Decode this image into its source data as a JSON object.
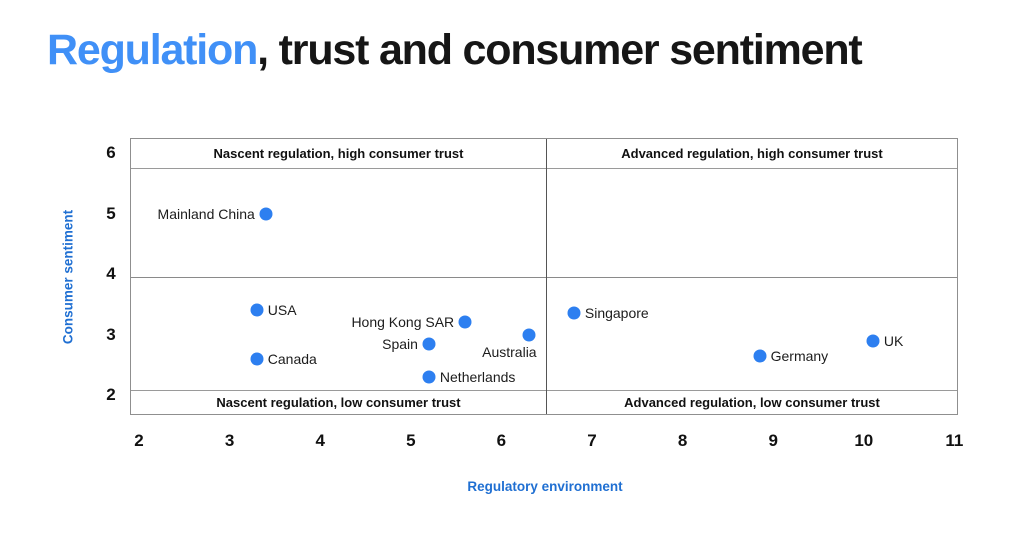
{
  "title": {
    "accent": "Regulation",
    "rest": ", trust and consumer sentiment"
  },
  "colors": {
    "accent_blue": "#4090F7",
    "point_blue": "#2D7FF0",
    "axis_label_blue": "#1F6FD2",
    "text_dark": "#141414",
    "line_gray": "#9A9A9A"
  },
  "chart_data": {
    "type": "scatter",
    "title": "Regulation, trust and consumer sentiment",
    "xlabel": "Regulatory environment",
    "ylabel": "Consumer sentiment",
    "xlim": [
      2,
      11
    ],
    "ylim": [
      2,
      6
    ],
    "x_ticks": [
      2,
      3,
      4,
      5,
      6,
      7,
      8,
      9,
      10,
      11
    ],
    "y_ticks": [
      6,
      5,
      4,
      3,
      2
    ],
    "grid": false,
    "legend": "none",
    "quadrant_dividers": {
      "x": 6.5,
      "y": 4
    },
    "quadrant_labels": [
      {
        "pos": "top-left",
        "text": "Nascent regulation, high consumer trust"
      },
      {
        "pos": "top-right",
        "text": "Advanced regulation, high consumer trust"
      },
      {
        "pos": "bottom-left",
        "text": "Nascent regulation, low consumer trust"
      },
      {
        "pos": "bottom-right",
        "text": "Advanced regulation, low consumer trust"
      }
    ],
    "points": [
      {
        "name": "Mainland China",
        "x": 3.4,
        "y": 5.0,
        "label_position": "left"
      },
      {
        "name": "USA",
        "x": 3.3,
        "y": 3.4,
        "label_position": "right"
      },
      {
        "name": "Canada",
        "x": 3.3,
        "y": 2.6,
        "label_position": "right"
      },
      {
        "name": "Hong Kong SAR",
        "x": 5.6,
        "y": 3.2,
        "label_position": "left"
      },
      {
        "name": "Spain",
        "x": 5.2,
        "y": 2.85,
        "label_position": "left"
      },
      {
        "name": "Australia",
        "x": 6.3,
        "y": 3.0,
        "label_position": "below-left"
      },
      {
        "name": "Netherlands",
        "x": 5.2,
        "y": 2.3,
        "label_position": "right"
      },
      {
        "name": "Singapore",
        "x": 6.8,
        "y": 3.35,
        "label_position": "right"
      },
      {
        "name": "Germany",
        "x": 8.85,
        "y": 2.65,
        "label_position": "right"
      },
      {
        "name": "UK",
        "x": 10.1,
        "y": 2.9,
        "label_position": "right"
      }
    ]
  }
}
